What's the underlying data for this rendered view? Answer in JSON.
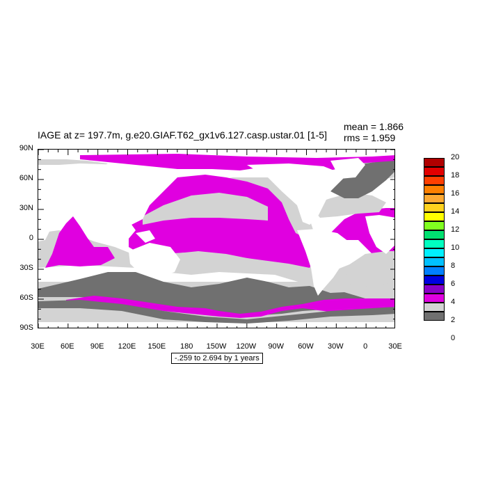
{
  "header": {
    "title": "IAGE at z= 197.7m, g.e20.GIAF.T62_gx1v6.127.casp.ustar.01 [1-5]",
    "mean": "mean = 1.866",
    "rms": "rms = 1.959"
  },
  "map": {
    "lat_labels": [
      "90N",
      "60N",
      "30N",
      "0",
      "30S",
      "60S",
      "90S"
    ],
    "lon_labels": [
      "30E",
      "60E",
      "90E",
      "120E",
      "150E",
      "180",
      "150W",
      "120W",
      "90W",
      "60W",
      "30W",
      "0",
      "30E"
    ],
    "range_note": "-.259 to 2.694 by 1 years"
  },
  "colorbar": {
    "labels": [
      "20",
      "18",
      "16",
      "14",
      "12",
      "10",
      "8",
      "6",
      "4",
      "2",
      "0"
    ],
    "colors": [
      "#b00000",
      "#e20000",
      "#ff3f00",
      "#ff8000",
      "#ffaa33",
      "#ffd21e",
      "#ffff00",
      "#80ff20",
      "#00e070",
      "#00ffc0",
      "#00f0ff",
      "#00c0ff",
      "#0080ff",
      "#0000e0",
      "#8a00c8",
      "#e000e0",
      "#d3d3d3",
      "#707070"
    ]
  },
  "field_colors": {
    "land": "#ffffff",
    "age_0_1": "#707070",
    "age_1_2": "#d3d3d3",
    "age_2_3": "#e000e0"
  }
}
